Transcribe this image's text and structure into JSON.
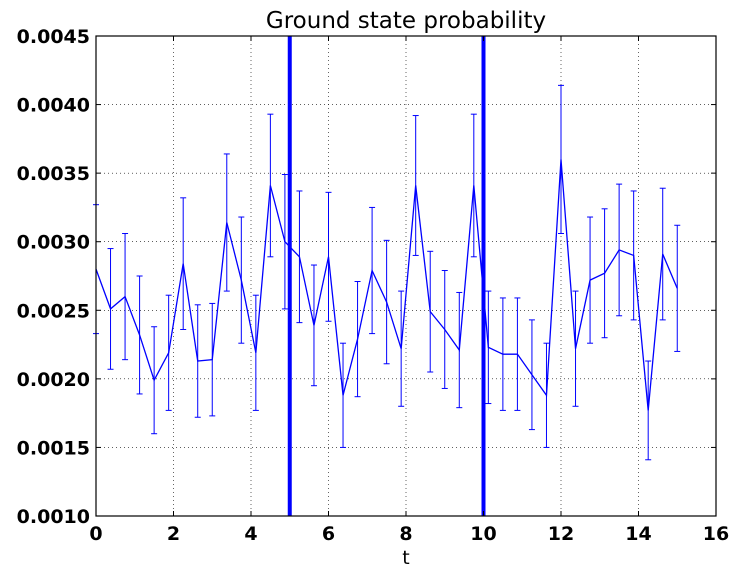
{
  "chart_data": {
    "type": "line",
    "title": "Ground state probability",
    "xlabel": "t",
    "ylabel": "",
    "xlim": [
      0,
      16
    ],
    "ylim": [
      0.001,
      0.0045
    ],
    "xticks": [
      0,
      2,
      4,
      6,
      8,
      10,
      12,
      14,
      16
    ],
    "xtick_labels": [
      "0",
      "2",
      "4",
      "6",
      "8",
      "10",
      "12",
      "14",
      "16"
    ],
    "yticks": [
      0.001,
      0.0015,
      0.002,
      0.0025,
      0.003,
      0.0035,
      0.004,
      0.0045
    ],
    "ytick_labels": [
      "0.0010",
      "0.0015",
      "0.0020",
      "0.0025",
      "0.0030",
      "0.0035",
      "0.0040",
      "0.0045"
    ],
    "grid": true,
    "series_color": "#0000ff",
    "vertical_lines": [
      5,
      10
    ],
    "series": [
      {
        "x": [
          0.0,
          0.375,
          0.75,
          1.125,
          1.5,
          1.875,
          2.25,
          2.625,
          3.0,
          3.375,
          3.75,
          4.125,
          4.5,
          4.875,
          5.25,
          5.625,
          6.0,
          6.375,
          6.75,
          7.125,
          7.5,
          7.875,
          8.25,
          8.625,
          9.0,
          9.375,
          9.75,
          10.125,
          10.5,
          10.875,
          11.25,
          11.625,
          12.0,
          12.375,
          12.75,
          13.125,
          13.5,
          13.875,
          14.25,
          14.625,
          15.0
        ],
        "y": [
          0.0028,
          0.00251,
          0.0026,
          0.00232,
          0.00199,
          0.00219,
          0.00284,
          0.00213,
          0.00214,
          0.00314,
          0.00272,
          0.00219,
          0.00341,
          0.003,
          0.00289,
          0.00239,
          0.00289,
          0.00188,
          0.00229,
          0.00279,
          0.00256,
          0.00222,
          0.00341,
          0.00249,
          0.00236,
          0.00221,
          0.00341,
          0.00223,
          0.00218,
          0.00218,
          0.00203,
          0.00188,
          0.0036,
          0.00222,
          0.00272,
          0.00277,
          0.00294,
          0.0029,
          0.00177,
          0.00291,
          0.00266
        ],
        "err": [
          0.00047,
          0.00044,
          0.00046,
          0.00043,
          0.00039,
          0.00042,
          0.00048,
          0.00041,
          0.00041,
          0.0005,
          0.00046,
          0.00042,
          0.00052,
          0.00049,
          0.00048,
          0.00044,
          0.00047,
          0.00038,
          0.00042,
          0.00046,
          0.00045,
          0.00042,
          0.00051,
          0.00044,
          0.00043,
          0.00042,
          0.00052,
          0.00041,
          0.00041,
          0.00041,
          0.0004,
          0.00038,
          0.00054,
          0.00042,
          0.00046,
          0.00047,
          0.00048,
          0.00047,
          0.00036,
          0.00048,
          0.00046
        ]
      }
    ]
  }
}
